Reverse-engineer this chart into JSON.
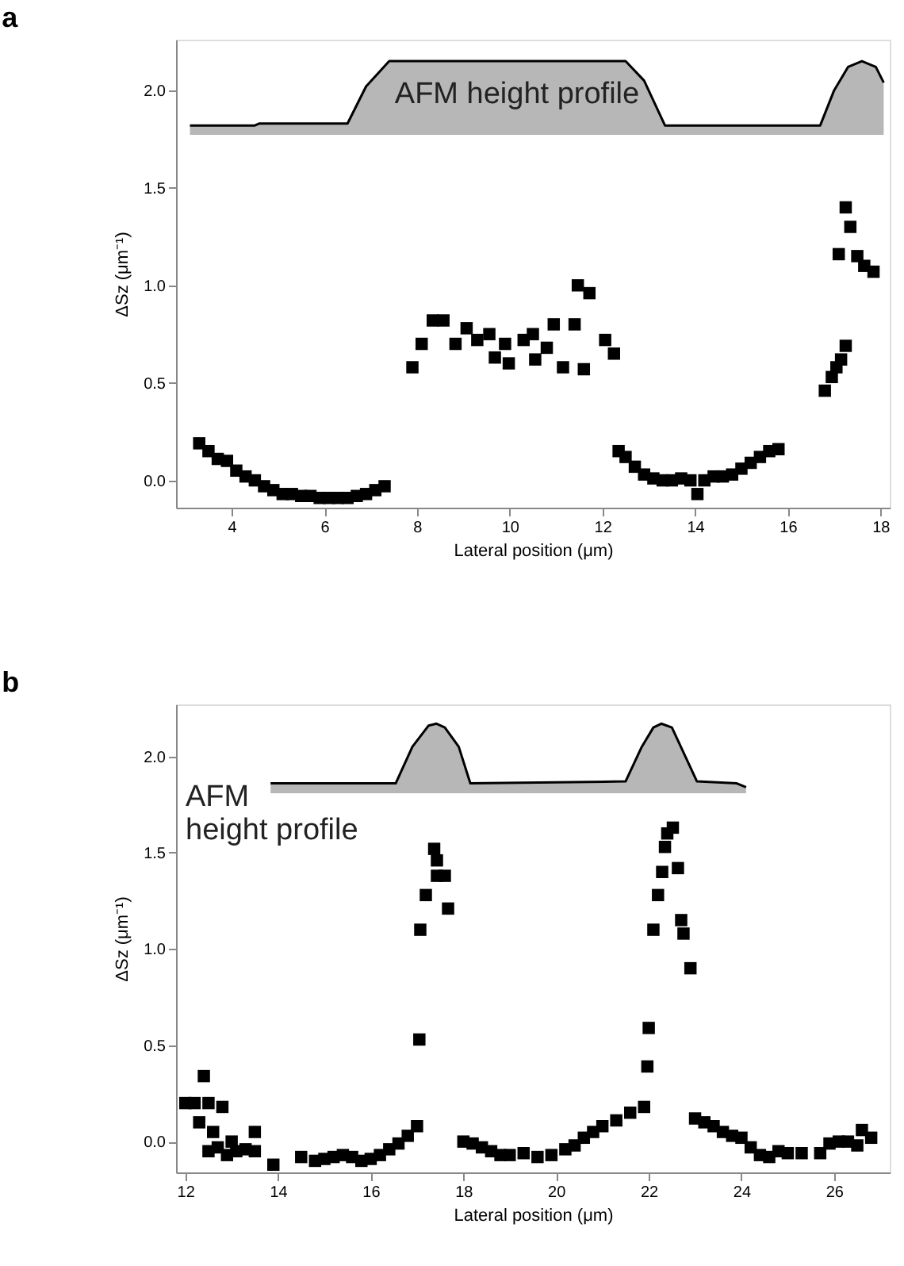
{
  "chart_data": [
    {
      "type": "scatter",
      "title": "a",
      "xlabel": "Lateral position (μm)",
      "ylabel": "ΔSz (μm⁻¹)",
      "xlim": [
        2.8,
        18.2
      ],
      "xticks": [
        4,
        6,
        8,
        10,
        12,
        14,
        16,
        18
      ],
      "ylim": [
        -0.14,
        2.26
      ],
      "yticks": [
        {
          "value": 0,
          "label": "0.0"
        },
        {
          "value": 0.5,
          "label": "0.5"
        },
        {
          "value": 1,
          "label": "1.0"
        },
        {
          "value": 1.5,
          "label": "1.5"
        },
        {
          "value": 2,
          "label": "2.0"
        }
      ],
      "grid": false,
      "annotations": [
        "AFM height profile"
      ],
      "series": [
        {
          "type": "area",
          "color": "#999999",
          "x": [
            3.1,
            4.5,
            4.6,
            6.5,
            6.9,
            7.4,
            12.5,
            12.9,
            13.35,
            16.7,
            17.0,
            17.3,
            17.6,
            17.9,
            18.07
          ],
          "values": [
            1.82,
            1.82,
            1.83,
            1.83,
            2.02,
            2.15,
            2.15,
            2.05,
            1.82,
            1.82,
            2.0,
            2.12,
            2.15,
            2.12,
            2.04
          ],
          "marker": "none"
        },
        {
          "color": "#000000",
          "marker": "square",
          "x": [
            3.3,
            3.5,
            3.7,
            3.9,
            4.1,
            4.3,
            4.5,
            4.7,
            4.9,
            5.1,
            5.3,
            5.5,
            5.7,
            5.9,
            6.1,
            6.3,
            6.5,
            6.7,
            6.9,
            7.1,
            7.3,
            7.9,
            8.1,
            8.34,
            8.57,
            8.83,
            9.07,
            9.3,
            9.56,
            9.68,
            9.9,
            9.98,
            10.3,
            10.5,
            10.55,
            10.8,
            10.95,
            11.15,
            11.4,
            11.47,
            11.6,
            11.72,
            12.06,
            12.25,
            12.35,
            12.5,
            12.7,
            12.9,
            13.1,
            13.3,
            13.5,
            13.7,
            13.9,
            14.05,
            14.2,
            14.4,
            14.6,
            14.8,
            15.0,
            15.2,
            15.4,
            15.6,
            15.8,
            16.8,
            16.95,
            17.05,
            17.15,
            17.25,
            17.1,
            17.25,
            17.35,
            17.5,
            17.65,
            17.85
          ],
          "values": [
            0.19,
            0.15,
            0.11,
            0.1,
            0.05,
            0.02,
            0.0,
            -0.03,
            -0.05,
            -0.07,
            -0.07,
            -0.08,
            -0.08,
            -0.09,
            -0.09,
            -0.09,
            -0.09,
            -0.08,
            -0.07,
            -0.05,
            -0.03,
            0.58,
            0.7,
            0.82,
            0.82,
            0.7,
            0.78,
            0.72,
            0.75,
            0.63,
            0.7,
            0.6,
            0.72,
            0.75,
            0.62,
            0.68,
            0.8,
            0.58,
            0.8,
            1.0,
            0.57,
            0.96,
            0.72,
            0.65,
            0.15,
            0.12,
            0.07,
            0.03,
            0.01,
            0.0,
            0.0,
            0.01,
            0.0,
            -0.07,
            0.0,
            0.02,
            0.02,
            0.03,
            0.06,
            0.09,
            0.12,
            0.15,
            0.16,
            0.46,
            0.53,
            0.58,
            0.62,
            0.69,
            1.16,
            1.4,
            1.3,
            1.15,
            1.1,
            1.07
          ]
        }
      ]
    },
    {
      "type": "scatter",
      "title": "b",
      "xlabel": "Lateral position (μm)",
      "ylabel": "ΔSz (μm⁻¹)",
      "xlim": [
        11.8,
        27.2
      ],
      "xticks": [
        12,
        14,
        16,
        18,
        20,
        22,
        24,
        26
      ],
      "ylim": [
        -0.16,
        2.27
      ],
      "yticks": [
        {
          "value": 0,
          "label": "0.0"
        },
        {
          "value": 0.5,
          "label": "0.5"
        },
        {
          "value": 1,
          "label": "1.0"
        },
        {
          "value": 1.5,
          "label": "1.5"
        },
        {
          "value": 2,
          "label": "2.0"
        }
      ],
      "grid": false,
      "annotations": [
        "AFM\nheight profile"
      ],
      "series": [
        {
          "type": "area",
          "color": "#999999",
          "x": [
            13.84,
            16.54,
            16.9,
            17.25,
            17.42,
            17.6,
            17.9,
            18.15,
            21.5,
            21.85,
            22.1,
            22.27,
            22.5,
            22.75,
            23.04,
            23.9,
            24.1
          ],
          "values": [
            1.86,
            1.86,
            2.05,
            2.16,
            2.17,
            2.15,
            2.05,
            1.86,
            1.87,
            2.05,
            2.15,
            2.17,
            2.15,
            2.02,
            1.87,
            1.86,
            1.84
          ],
          "marker": "none"
        },
        {
          "color": "#000000",
          "marker": "square",
          "x": [
            12.0,
            12.2,
            12.4,
            12.3,
            12.5,
            12.6,
            12.5,
            12.7,
            12.8,
            12.9,
            13.0,
            13.1,
            13.3,
            13.5,
            13.5,
            13.9,
            14.5,
            14.8,
            15.0,
            15.2,
            15.4,
            15.6,
            15.8,
            16.0,
            16.2,
            16.4,
            16.6,
            16.8,
            17.0,
            17.05,
            17.07,
            17.19,
            17.43,
            17.6,
            17.43,
            17.37,
            17.67,
            18.0,
            18.2,
            18.4,
            18.6,
            18.8,
            19.0,
            19.3,
            19.6,
            19.9,
            20.2,
            20.4,
            20.6,
            20.8,
            21.0,
            21.3,
            21.6,
            21.9,
            21.97,
            22.0,
            22.1,
            22.2,
            22.29,
            22.35,
            22.52,
            22.4,
            22.63,
            22.7,
            22.75,
            22.9,
            23.0,
            23.2,
            23.4,
            23.6,
            23.8,
            24.0,
            24.2,
            24.4,
            24.6,
            24.8,
            25.0,
            25.3,
            25.7,
            25.9,
            26.1,
            26.3,
            26.5,
            26.6,
            26.8
          ],
          "values": [
            0.2,
            0.2,
            0.34,
            0.1,
            0.2,
            0.05,
            -0.05,
            -0.03,
            0.18,
            -0.07,
            0.0,
            -0.05,
            -0.04,
            -0.05,
            0.05,
            -0.12,
            -0.08,
            -0.1,
            -0.09,
            -0.08,
            -0.07,
            -0.08,
            -0.1,
            -0.09,
            -0.07,
            -0.04,
            -0.01,
            0.03,
            0.08,
            0.53,
            1.1,
            1.28,
            1.38,
            1.38,
            1.46,
            1.52,
            1.21,
            0.0,
            -0.01,
            -0.03,
            -0.05,
            -0.07,
            -0.07,
            -0.06,
            -0.08,
            -0.07,
            -0.04,
            -0.02,
            0.02,
            0.05,
            0.08,
            0.11,
            0.15,
            0.18,
            0.39,
            0.59,
            1.1,
            1.28,
            1.4,
            1.53,
            1.63,
            1.6,
            1.42,
            1.15,
            1.08,
            0.9,
            0.12,
            0.1,
            0.08,
            0.05,
            0.03,
            0.02,
            -0.03,
            -0.07,
            -0.08,
            -0.05,
            -0.06,
            -0.06,
            -0.06,
            -0.01,
            0.0,
            0.0,
            -0.02,
            0.06,
            0.02
          ]
        }
      ]
    }
  ]
}
